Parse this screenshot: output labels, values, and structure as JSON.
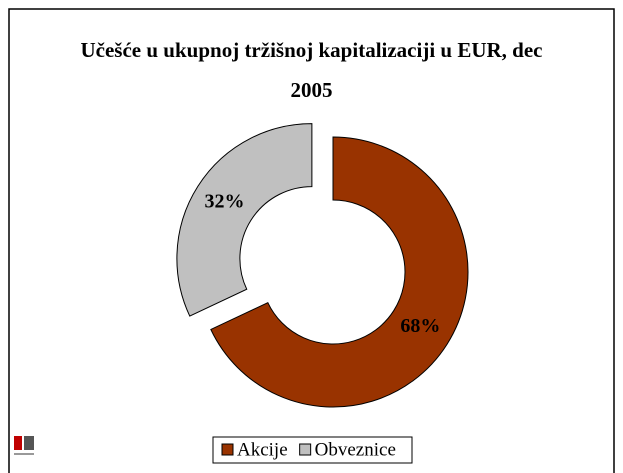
{
  "chart_data": {
    "type": "donut",
    "title": "Učešće u ukupnoj tržišnoj kapitalizaciji u EUR, dec 2005",
    "categories": [
      "Akcije",
      "Obveznice"
    ],
    "values": [
      68,
      32
    ],
    "value_labels": [
      "68%",
      "32%"
    ],
    "colors": [
      "#993300",
      "#c0c0c0"
    ],
    "exploded": [
      false,
      true
    ]
  }
}
